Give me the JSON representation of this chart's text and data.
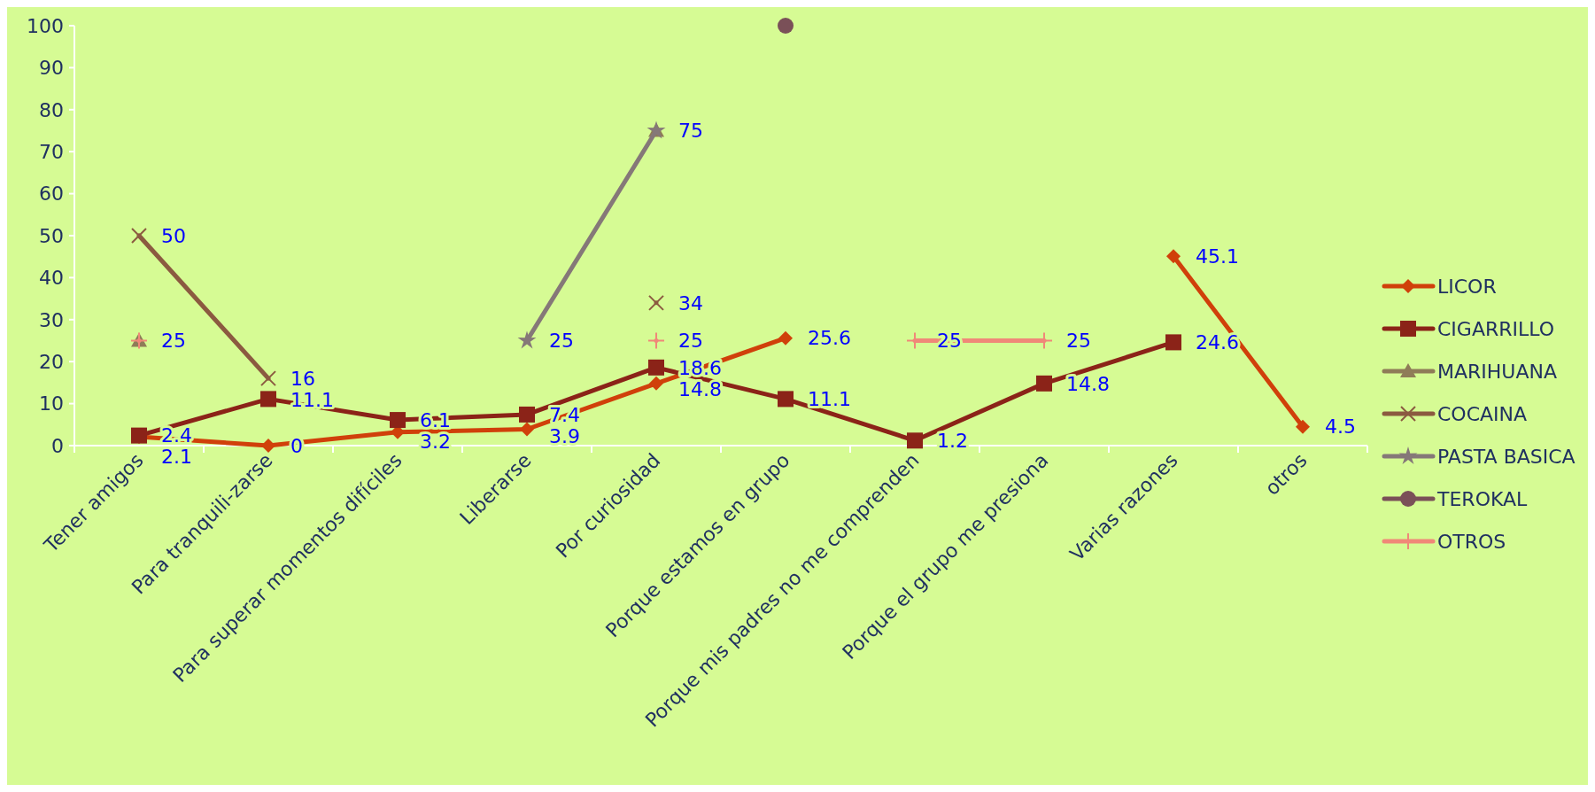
{
  "chart_data": {
    "type": "line",
    "categories": [
      "Tener amigos",
      "Para tranquili-zarse",
      "Para superar momentos difíciles",
      "Liberarse",
      "Por curiosidad",
      "Porque estamos en grupo",
      "Porque mis padres no me comprenden",
      "Porque el grupo me presiona",
      "Varias razones",
      "otros"
    ],
    "ylim": [
      0,
      100
    ],
    "yticks": [
      0,
      10,
      20,
      30,
      40,
      50,
      60,
      70,
      80,
      90,
      100
    ],
    "grid": false,
    "legend": "right",
    "series": [
      {
        "name": "LICOR",
        "color": "#d0400a",
        "marker": "diamond",
        "values": [
          2.1,
          0,
          3.2,
          3.9,
          14.8,
          25.6,
          null,
          null,
          45.1,
          4.5
        ],
        "value_labels": [
          "2.1",
          "0",
          "3.2",
          "3.9",
          "14.8",
          "25.6",
          null,
          null,
          "45.1",
          "4.5"
        ]
      },
      {
        "name": "CIGARRILLO",
        "color": "#8b2318",
        "marker": "square",
        "values": [
          2.4,
          11.1,
          6.1,
          7.4,
          18.6,
          11.1,
          1.2,
          14.8,
          24.6,
          null
        ],
        "value_labels": [
          "2.4",
          "11.1",
          "6.1",
          "7.4",
          "18.6",
          "11.1",
          "1.2",
          "14.8",
          "24.6",
          null
        ]
      },
      {
        "name": "MARIHUANA",
        "type": "scatter",
        "color": "#8f7c58",
        "marker": "triangle",
        "values": [
          25,
          null,
          null,
          null,
          75,
          null,
          null,
          null,
          null,
          null
        ],
        "value_labels": [
          "25",
          null,
          null,
          null,
          "75",
          null,
          null,
          null,
          null,
          null
        ]
      },
      {
        "name": "COCAINA",
        "color": "#8b5a40",
        "marker": "cross",
        "values": [
          50,
          16,
          null,
          null,
          34,
          null,
          null,
          null,
          null,
          null
        ],
        "value_labels": [
          "50",
          "16",
          null,
          null,
          "34",
          null,
          null,
          null,
          null,
          null
        ]
      },
      {
        "name": "PASTA BASICA",
        "color": "#857878",
        "marker": "star",
        "values": [
          null,
          null,
          null,
          25,
          75,
          null,
          null,
          null,
          null,
          null
        ],
        "value_labels": [
          null,
          null,
          null,
          "25",
          null,
          null,
          null,
          null,
          null,
          null
        ]
      },
      {
        "name": "TEROKAL",
        "color": "#7a5058",
        "marker": "circle",
        "values": [
          null,
          null,
          null,
          null,
          null,
          100,
          null,
          null,
          null,
          null
        ]
      },
      {
        "name": "OTROS",
        "color": "#f08878",
        "marker": "plus",
        "values": [
          25,
          null,
          null,
          null,
          25,
          null,
          25,
          25,
          null,
          null
        ],
        "value_labels": [
          null,
          null,
          null,
          null,
          "25",
          null,
          "25",
          "25",
          null,
          null
        ]
      }
    ]
  }
}
